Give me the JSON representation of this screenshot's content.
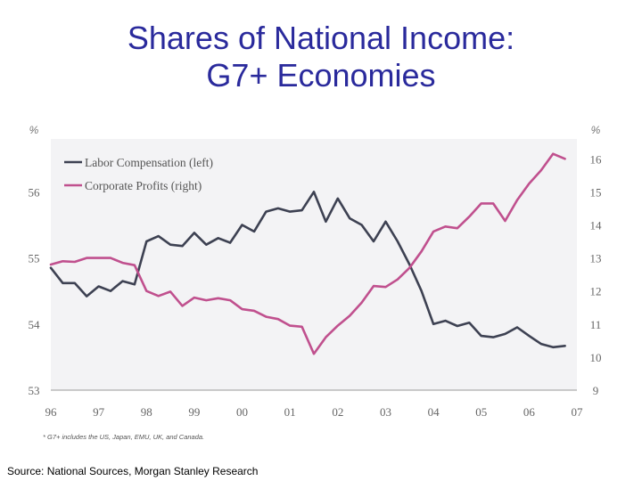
{
  "slide": {
    "title_line1": "Shares of National Income:",
    "title_line2": "G7+ Economies",
    "source": "Source: National Sources, Morgan Stanley Research"
  },
  "chart_data": {
    "type": "line",
    "left_axis_unit": "%",
    "right_axis_unit": "%",
    "left_ylim": [
      53,
      56.8
    ],
    "right_ylim": [
      9,
      16.6
    ],
    "left_ticks": [
      "53",
      "54",
      "55",
      "56"
    ],
    "right_ticks": [
      "9",
      "10",
      "11",
      "12",
      "13",
      "14",
      "15",
      "16"
    ],
    "xlim": [
      1996,
      2007
    ],
    "x_ticks": [
      "96",
      "97",
      "98",
      "99",
      "00",
      "01",
      "02",
      "03",
      "04",
      "05",
      "06",
      "07"
    ],
    "footnote": "* G7+ includes the US, Japan, EMU, UK, and Canada.",
    "series": [
      {
        "name": "Labor Compensation (left)",
        "axis": "left",
        "color": "#3d4152",
        "x": [
          1996.0,
          1996.25,
          1996.5,
          1996.75,
          1997.0,
          1997.25,
          1997.5,
          1997.75,
          1998.0,
          1998.25,
          1998.5,
          1998.75,
          1999.0,
          1999.25,
          1999.5,
          1999.75,
          2000.0,
          2000.25,
          2000.5,
          2000.75,
          2001.0,
          2001.25,
          2001.5,
          2001.75,
          2002.0,
          2002.25,
          2002.5,
          2002.75,
          2003.0,
          2003.25,
          2003.5,
          2003.75,
          2004.0,
          2004.25,
          2004.5,
          2004.75,
          2005.0,
          2005.25,
          2005.5,
          2005.75,
          2006.0,
          2006.25,
          2006.5,
          2006.75
        ],
        "values": [
          54.85,
          54.62,
          54.62,
          54.42,
          54.57,
          54.5,
          54.65,
          54.6,
          55.25,
          55.33,
          55.2,
          55.18,
          55.38,
          55.2,
          55.3,
          55.23,
          55.5,
          55.4,
          55.7,
          55.75,
          55.7,
          55.72,
          56.0,
          55.55,
          55.9,
          55.6,
          55.5,
          55.25,
          55.55,
          55.25,
          54.9,
          54.5,
          54.0,
          54.05,
          53.97,
          54.02,
          53.82,
          53.8,
          53.85,
          53.95,
          53.82,
          53.7,
          53.65,
          53.67
        ]
      },
      {
        "name": "Corporate Profits (right)",
        "axis": "right",
        "color": "#c0508e",
        "x": [
          1996.0,
          1996.25,
          1996.5,
          1996.75,
          1997.0,
          1997.25,
          1997.5,
          1997.75,
          1998.0,
          1998.25,
          1998.5,
          1998.75,
          1999.0,
          1999.25,
          1999.5,
          1999.75,
          2000.0,
          2000.25,
          2000.5,
          2000.75,
          2001.0,
          2001.25,
          2001.5,
          2001.75,
          2002.0,
          2002.25,
          2002.5,
          2002.75,
          2003.0,
          2003.25,
          2003.5,
          2003.75,
          2004.0,
          2004.25,
          2004.5,
          2004.75,
          2005.0,
          2005.25,
          2005.5,
          2005.75,
          2006.0,
          2006.25,
          2006.5,
          2006.75
        ],
        "values": [
          12.8,
          12.9,
          12.88,
          13.0,
          13.0,
          13.0,
          12.85,
          12.78,
          12.0,
          11.85,
          11.98,
          11.55,
          11.8,
          11.72,
          11.78,
          11.72,
          11.45,
          11.4,
          11.22,
          11.15,
          10.95,
          10.92,
          10.1,
          10.6,
          10.95,
          11.25,
          11.65,
          12.15,
          12.12,
          12.35,
          12.7,
          13.2,
          13.8,
          13.95,
          13.9,
          14.25,
          14.65,
          14.65,
          14.12,
          14.75,
          15.25,
          15.65,
          16.15,
          16.0
        ]
      }
    ]
  }
}
